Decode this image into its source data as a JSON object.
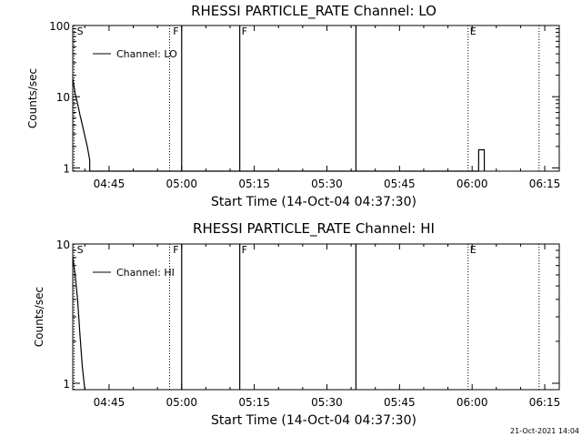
{
  "chart_data": [
    {
      "type": "line",
      "title": "RHESSI PARTICLE_RATE Channel: LO",
      "xlabel": "Start Time (14-Oct-04 04:37:30)",
      "ylabel": "Counts/sec",
      "yscale": "log",
      "xlim": [
        "04:37:30",
        "06:18:00"
      ],
      "ylim": [
        0.9,
        100
      ],
      "xticks": [
        "04:45",
        "05:00",
        "05:15",
        "05:30",
        "05:45",
        "06:00",
        "06:15"
      ],
      "yticks": [
        {
          "value": 1,
          "label": "1"
        },
        {
          "value": 10,
          "label": "10"
        },
        {
          "value": 100,
          "label": "100"
        }
      ],
      "legend": {
        "position": "top-left",
        "entries": [
          "Channel: LO"
        ]
      },
      "series": [
        {
          "name": "Channel: LO",
          "x": [
            "04:37:30",
            "04:38:00",
            "04:38:30",
            "04:39:00",
            "04:39:30",
            "04:40:00",
            "04:40:30",
            "04:41:00",
            "04:41:01",
            "06:01:20",
            "06:01:21",
            "06:02:30",
            "06:02:31"
          ],
          "y": [
            18,
            11,
            8,
            5.5,
            4,
            2.8,
            2,
            1.3,
            0.9,
            0.9,
            1.8,
            1.8,
            0.9
          ]
        }
      ],
      "solid_markers": [
        "05:00:00",
        "05:12:00",
        "05:36:00"
      ],
      "dotted_markers": [
        "04:37:30",
        "04:57:30",
        "05:59:10",
        "06:13:50"
      ],
      "flags": [
        {
          "x": "04:38:00",
          "label": "S"
        },
        {
          "x": "04:57:50",
          "label": "F"
        },
        {
          "x": "05:12:00",
          "label": "F"
        },
        {
          "x": "05:59:10",
          "label": "E"
        }
      ]
    },
    {
      "type": "line",
      "title": "RHESSI PARTICLE_RATE Channel: HI",
      "xlabel": "Start Time (14-Oct-04 04:37:30)",
      "ylabel": "Counts/sec",
      "yscale": "log",
      "xlim": [
        "04:37:30",
        "06:18:00"
      ],
      "ylim": [
        0.9,
        10
      ],
      "xticks": [
        "04:45",
        "05:00",
        "05:15",
        "05:30",
        "05:45",
        "06:00",
        "06:15"
      ],
      "yticks": [
        {
          "value": 1,
          "label": "1"
        },
        {
          "value": 10,
          "label": "10"
        }
      ],
      "legend": {
        "position": "top-left",
        "entries": [
          "Channel: HI"
        ]
      },
      "series": [
        {
          "name": "Channel: HI",
          "x": [
            "04:37:30",
            "04:38:00",
            "04:38:30",
            "04:39:00",
            "04:39:30",
            "04:40:00",
            "04:40:01"
          ],
          "y": [
            8,
            6,
            4,
            2.2,
            1.3,
            0.9,
            0.9
          ]
        }
      ],
      "solid_markers": [
        "05:00:00",
        "05:12:00",
        "05:36:00"
      ],
      "dotted_markers": [
        "04:37:30",
        "04:57:30",
        "05:59:10",
        "06:13:50"
      ],
      "flags": [
        {
          "x": "04:38:00",
          "label": "S"
        },
        {
          "x": "04:57:50",
          "label": "F"
        },
        {
          "x": "05:12:00",
          "label": "F"
        },
        {
          "x": "05:59:10",
          "label": "E"
        }
      ]
    }
  ],
  "timestamp": "21-Oct-2021 14:04"
}
